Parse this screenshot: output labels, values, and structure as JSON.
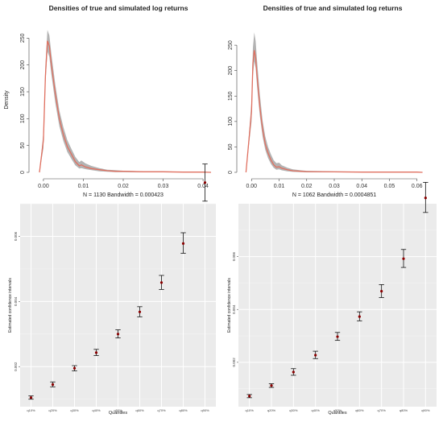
{
  "chart_data": [
    {
      "type": "line",
      "title": "Densities of true and simulated log returns",
      "xlabel": "N = 1130   Bandwidth = 0.000423",
      "ylabel": "Density",
      "xlim": [
        -0.002,
        0.042
      ],
      "ylim": [
        0,
        270
      ],
      "xticks": [
        0.0,
        0.01,
        0.02,
        0.03,
        0.04
      ],
      "xtick_labels": [
        "0.00",
        "0.01",
        "0.02",
        "0.03",
        "0.04"
      ],
      "yticks": [
        0,
        50,
        100,
        150,
        200,
        250
      ],
      "ytick_labels": [
        "0",
        "50",
        "100",
        "150",
        "200",
        "250"
      ],
      "grid": false,
      "series": [
        {
          "color": "#e07060",
          "x": [
            -0.001,
            0.0,
            0.0005,
            0.001,
            0.0015,
            0.002,
            0.003,
            0.004,
            0.005,
            0.006,
            0.007,
            0.008,
            0.009,
            0.0095,
            0.0105,
            0.012,
            0.014,
            0.016,
            0.018,
            0.02,
            0.025,
            0.03,
            0.035,
            0.04,
            0.042
          ],
          "values": [
            0,
            60,
            180,
            245,
            235,
            200,
            145,
            100,
            70,
            48,
            34,
            20,
            12,
            14,
            10,
            7,
            5,
            3,
            2,
            2,
            1,
            1,
            0.5,
            0.5,
            0
          ]
        }
      ],
      "band": {
        "color": "#9a9a9a",
        "x": [
          -0.001,
          0.0,
          0.0005,
          0.001,
          0.0015,
          0.002,
          0.003,
          0.004,
          0.005,
          0.006,
          0.007,
          0.008,
          0.009,
          0.0095,
          0.0105,
          0.012,
          0.014,
          0.016,
          0.018,
          0.02,
          0.025,
          0.03,
          0.035,
          0.04,
          0.042
        ],
        "lower": [
          0,
          45,
          165,
          225,
          215,
          182,
          128,
          86,
          58,
          38,
          25,
          13,
          7,
          8,
          6,
          4,
          2,
          1,
          0.5,
          0.5,
          0,
          0,
          0,
          0,
          0
        ],
        "upper": [
          0,
          75,
          200,
          265,
          255,
          220,
          162,
          115,
          84,
          60,
          44,
          29,
          19,
          22,
          17,
          12,
          8,
          5,
          4,
          3,
          2,
          2,
          1,
          1,
          0
        ]
      }
    },
    {
      "type": "line",
      "title": "Densities of true and simulated log returns",
      "xlabel": "N = 1062   Bandwidth = 0.0004851",
      "ylabel": "",
      "xlim": [
        -0.003,
        0.063
      ],
      "ylim": [
        0,
        285
      ],
      "xticks": [
        0.0,
        0.01,
        0.02,
        0.03,
        0.04,
        0.05,
        0.06
      ],
      "xtick_labels": [
        "0.00",
        "0.01",
        "0.02",
        "0.03",
        "0.04",
        "0.05",
        "0.06"
      ],
      "yticks": [
        0,
        50,
        100,
        150,
        200,
        250
      ],
      "ytick_labels": [
        "0",
        "50",
        "100",
        "150",
        "200",
        "250"
      ],
      "grid": false,
      "series": [
        {
          "color": "#e07060",
          "x": [
            -0.002,
            0.0,
            0.0005,
            0.001,
            0.0015,
            0.002,
            0.003,
            0.004,
            0.005,
            0.006,
            0.007,
            0.008,
            0.009,
            0.01,
            0.011,
            0.013,
            0.015,
            0.018,
            0.02,
            0.03,
            0.04,
            0.05,
            0.06,
            0.062
          ],
          "values": [
            0,
            120,
            215,
            240,
            225,
            190,
            130,
            85,
            55,
            38,
            25,
            15,
            10,
            11,
            8,
            5,
            3,
            2,
            1.5,
            1,
            0.5,
            0.5,
            0.5,
            0
          ]
        }
      ],
      "band": {
        "color": "#9a9a9a",
        "x": [
          -0.002,
          0.0,
          0.0005,
          0.001,
          0.0015,
          0.002,
          0.003,
          0.004,
          0.005,
          0.006,
          0.007,
          0.008,
          0.009,
          0.01,
          0.011,
          0.013,
          0.015,
          0.018,
          0.02,
          0.03,
          0.04,
          0.05,
          0.06,
          0.062
        ],
        "lower": [
          0,
          100,
          190,
          218,
          205,
          170,
          112,
          70,
          44,
          28,
          17,
          9,
          5,
          6,
          4,
          2,
          1,
          0.5,
          0,
          0,
          0,
          0,
          0,
          0
        ],
        "upper": [
          0,
          140,
          245,
          275,
          258,
          220,
          155,
          102,
          70,
          50,
          36,
          24,
          18,
          19,
          14,
          9,
          6,
          4,
          3,
          2,
          1.5,
          1,
          1,
          0
        ]
      }
    },
    {
      "type": "scatter",
      "title": "",
      "xlabel": "Quantiles",
      "ylabel": "Estimated confidence intervals",
      "categories": [
        "q10%",
        "q20%",
        "q30%",
        "q40%",
        "q50%",
        "q60%",
        "q70%",
        "q80%",
        "q90%"
      ],
      "ylim": [
        0.00077,
        0.007
      ],
      "yticks": [
        0.002,
        0.004,
        0.006
      ],
      "ytick_labels": [
        "0.002",
        "0.004",
        "0.006"
      ],
      "grid": true,
      "background": "#ebebeb",
      "point_color": "#8b0000",
      "points": [
        {
          "value": 0.00105,
          "lower": 0.001,
          "upper": 0.0011
        },
        {
          "value": 0.00145,
          "lower": 0.00138,
          "upper": 0.00153
        },
        {
          "value": 0.00195,
          "lower": 0.00187,
          "upper": 0.00203
        },
        {
          "value": 0.00243,
          "lower": 0.00234,
          "upper": 0.00253
        },
        {
          "value": 0.003,
          "lower": 0.00288,
          "upper": 0.00313
        },
        {
          "value": 0.00368,
          "lower": 0.00353,
          "upper": 0.00384
        },
        {
          "value": 0.00458,
          "lower": 0.00437,
          "upper": 0.0048
        },
        {
          "value": 0.00578,
          "lower": 0.00548,
          "upper": 0.00611
        },
        {
          "value": 0.00765,
          "lower": 0.00708,
          "upper": 0.00822
        }
      ]
    },
    {
      "type": "scatter",
      "title": "",
      "xlabel": "Quantiles",
      "ylabel": "Estimated confidence intervals",
      "categories": [
        "q10%",
        "q20%",
        "q30%",
        "q40%",
        "q50%",
        "q60%",
        "q70%",
        "q80%",
        "q90%"
      ],
      "ylim": [
        0.00032,
        0.008
      ],
      "yticks": [
        0.002,
        0.004,
        0.006
      ],
      "ytick_labels": [
        "0.002",
        "0.004",
        "0.006"
      ],
      "grid": true,
      "background": "#ebebeb",
      "point_color": "#8b0000",
      "points": [
        {
          "value": 0.00072,
          "lower": 0.00066,
          "upper": 0.00078
        },
        {
          "value": 0.00112,
          "lower": 0.00105,
          "upper": 0.00119
        },
        {
          "value": 0.00163,
          "lower": 0.00151,
          "upper": 0.00176
        },
        {
          "value": 0.00227,
          "lower": 0.00214,
          "upper": 0.00242
        },
        {
          "value": 0.00297,
          "lower": 0.00283,
          "upper": 0.00313
        },
        {
          "value": 0.00373,
          "lower": 0.00357,
          "upper": 0.00391
        },
        {
          "value": 0.00469,
          "lower": 0.00445,
          "upper": 0.00494
        },
        {
          "value": 0.00592,
          "lower": 0.00559,
          "upper": 0.00627
        },
        {
          "value": 0.00822,
          "lower": 0.00767,
          "upper": 0.00881
        }
      ]
    }
  ]
}
